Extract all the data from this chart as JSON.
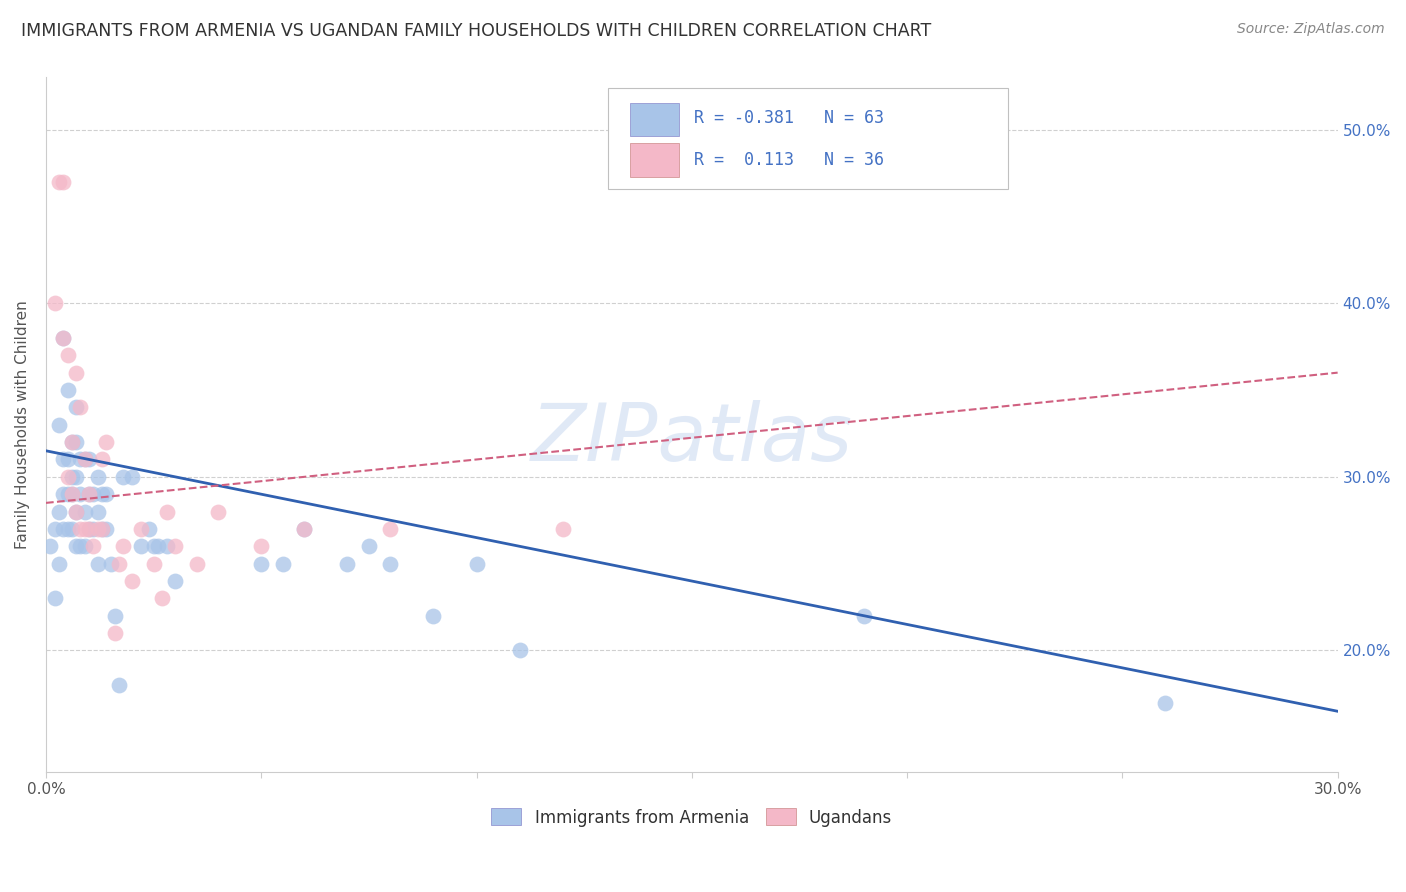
{
  "title": "IMMIGRANTS FROM ARMENIA VS UGANDAN FAMILY HOUSEHOLDS WITH CHILDREN CORRELATION CHART",
  "source": "Source: ZipAtlas.com",
  "ylabel": "Family Households with Children",
  "xlim": [
    0.0,
    0.3
  ],
  "ylim": [
    0.13,
    0.53
  ],
  "xticks": [
    0.0,
    0.05,
    0.1,
    0.15,
    0.2,
    0.25,
    0.3
  ],
  "yticks": [
    0.2,
    0.3,
    0.4,
    0.5
  ],
  "blue_color": "#a8c4e8",
  "pink_color": "#f4b8c8",
  "blue_line_color": "#3060b0",
  "pink_line_color": "#d06080",
  "legend_text_color": "#4472c4",
  "title_color": "#333333",
  "grid_color": "#d0d0d0",
  "watermark": "ZIPatlas",
  "blue_scatter_x": [
    0.001,
    0.002,
    0.002,
    0.003,
    0.003,
    0.003,
    0.004,
    0.004,
    0.004,
    0.004,
    0.005,
    0.005,
    0.005,
    0.005,
    0.006,
    0.006,
    0.006,
    0.006,
    0.007,
    0.007,
    0.007,
    0.007,
    0.007,
    0.008,
    0.008,
    0.008,
    0.009,
    0.009,
    0.009,
    0.01,
    0.01,
    0.01,
    0.011,
    0.011,
    0.012,
    0.012,
    0.012,
    0.013,
    0.013,
    0.014,
    0.014,
    0.015,
    0.016,
    0.017,
    0.018,
    0.02,
    0.022,
    0.024,
    0.025,
    0.026,
    0.028,
    0.03,
    0.05,
    0.055,
    0.06,
    0.07,
    0.075,
    0.08,
    0.09,
    0.1,
    0.11,
    0.19,
    0.26
  ],
  "blue_scatter_y": [
    0.26,
    0.23,
    0.27,
    0.25,
    0.28,
    0.33,
    0.27,
    0.29,
    0.31,
    0.38,
    0.27,
    0.29,
    0.31,
    0.35,
    0.27,
    0.29,
    0.3,
    0.32,
    0.26,
    0.28,
    0.3,
    0.32,
    0.34,
    0.26,
    0.29,
    0.31,
    0.26,
    0.28,
    0.31,
    0.27,
    0.29,
    0.31,
    0.27,
    0.29,
    0.25,
    0.28,
    0.3,
    0.27,
    0.29,
    0.27,
    0.29,
    0.25,
    0.22,
    0.18,
    0.3,
    0.3,
    0.26,
    0.27,
    0.26,
    0.26,
    0.26,
    0.24,
    0.25,
    0.25,
    0.27,
    0.25,
    0.26,
    0.25,
    0.22,
    0.25,
    0.2,
    0.22,
    0.17
  ],
  "pink_scatter_x": [
    0.002,
    0.003,
    0.004,
    0.004,
    0.005,
    0.005,
    0.006,
    0.006,
    0.007,
    0.007,
    0.008,
    0.008,
    0.009,
    0.009,
    0.01,
    0.01,
    0.011,
    0.012,
    0.013,
    0.013,
    0.014,
    0.016,
    0.017,
    0.018,
    0.02,
    0.022,
    0.025,
    0.027,
    0.028,
    0.03,
    0.035,
    0.04,
    0.05,
    0.06,
    0.08,
    0.12
  ],
  "pink_scatter_y": [
    0.4,
    0.47,
    0.47,
    0.38,
    0.3,
    0.37,
    0.32,
    0.29,
    0.36,
    0.28,
    0.34,
    0.27,
    0.27,
    0.31,
    0.29,
    0.27,
    0.26,
    0.27,
    0.27,
    0.31,
    0.32,
    0.21,
    0.25,
    0.26,
    0.24,
    0.27,
    0.25,
    0.23,
    0.28,
    0.26,
    0.25,
    0.28,
    0.26,
    0.27,
    0.27,
    0.27
  ],
  "blue_line_x": [
    0.0,
    0.3
  ],
  "blue_line_y": [
    0.315,
    0.165
  ],
  "pink_line_x": [
    0.0,
    0.3
  ],
  "pink_line_y": [
    0.285,
    0.36
  ]
}
